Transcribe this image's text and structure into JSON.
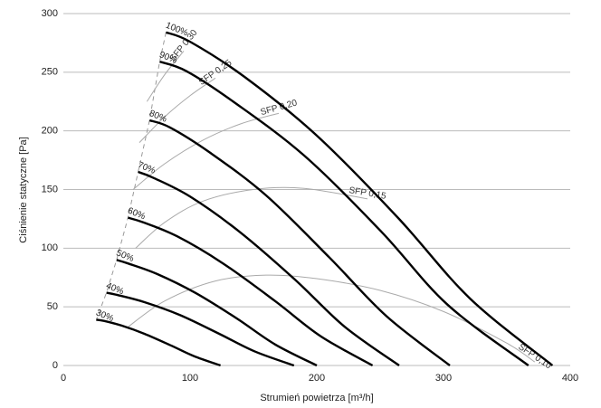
{
  "chart_data": {
    "type": "line",
    "xlabel": "Strumień powietrza [m³/h]",
    "ylabel": "Ciśnienie statyczne [Pa]",
    "xlim": [
      0,
      400
    ],
    "xticks": [
      0,
      100,
      200,
      300,
      400
    ],
    "ylim": [
      0,
      300
    ],
    "yticks": [
      0,
      50,
      100,
      150,
      200,
      250,
      300
    ],
    "grid": true,
    "series": [
      {
        "name": "100%",
        "color": "#000000",
        "x": [
          81,
          100,
          143,
          200,
          264,
          321,
          386
        ],
        "values": [
          284,
          276,
          246,
          196,
          126,
          57,
          0
        ]
      },
      {
        "name": "90%",
        "color": "#000000",
        "x": [
          76,
          97,
          134,
          190,
          251,
          303,
          367
        ],
        "values": [
          259,
          251,
          225,
          179,
          114,
          52,
          0
        ]
      },
      {
        "name": "80%",
        "color": "#000000",
        "x": [
          68,
          84,
          115,
          160,
          210,
          255,
          305
        ],
        "values": [
          209,
          203,
          182,
          145,
          92,
          42,
          0
        ]
      },
      {
        "name": "70%",
        "color": "#000000",
        "x": [
          59,
          71,
          100,
          139,
          183,
          222,
          265
        ],
        "values": [
          165,
          160,
          144,
          114,
          73,
          33,
          0
        ]
      },
      {
        "name": "60%",
        "color": "#000000",
        "x": [
          51,
          63,
          90,
          126,
          167,
          203,
          244
        ],
        "values": [
          126,
          122,
          110,
          87,
          55,
          25,
          0
        ]
      },
      {
        "name": "50%",
        "color": "#000000",
        "x": [
          42,
          51,
          74,
          104,
          137,
          167,
          200
        ],
        "values": [
          90,
          87,
          78,
          62,
          40,
          18,
          0
        ]
      },
      {
        "name": "40%",
        "color": "#000000",
        "x": [
          34,
          43,
          64,
          92,
          123,
          151,
          182
        ],
        "values": [
          62,
          60,
          54,
          43,
          27,
          12,
          0
        ]
      },
      {
        "name": "30%",
        "color": "#000000",
        "x": [
          26,
          32,
          46,
          64,
          85,
          103,
          124
        ],
        "values": [
          39,
          38,
          34,
          27,
          17,
          8,
          0
        ]
      }
    ],
    "sfp_lines": [
      {
        "name": "SFP 0,30",
        "color": "#aaaaaa",
        "x": [
          66,
          80,
          95
        ],
        "values": [
          225,
          248,
          268
        ]
      },
      {
        "name": "SFP 0,25",
        "color": "#aaaaaa",
        "x": [
          60,
          80,
          100,
          120
        ],
        "values": [
          190,
          212,
          230,
          245
        ]
      },
      {
        "name": "SFP 0,20",
        "color": "#aaaaaa",
        "x": [
          55,
          80,
          110,
          140,
          170
        ],
        "values": [
          150,
          172,
          192,
          206,
          215
        ]
      },
      {
        "name": "SFP 0,15",
        "color": "#aaaaaa",
        "x": [
          57,
          80,
          110,
          150,
          190,
          240
        ],
        "values": [
          100,
          122,
          140,
          150,
          151,
          142
        ]
      },
      {
        "name": "SFP 0,10",
        "color": "#aaaaaa",
        "x": [
          50,
          80,
          120,
          160,
          200,
          250,
          300,
          350,
          372
        ],
        "values": [
          32,
          55,
          72,
          77,
          74,
          64,
          46,
          19,
          3
        ]
      }
    ]
  }
}
